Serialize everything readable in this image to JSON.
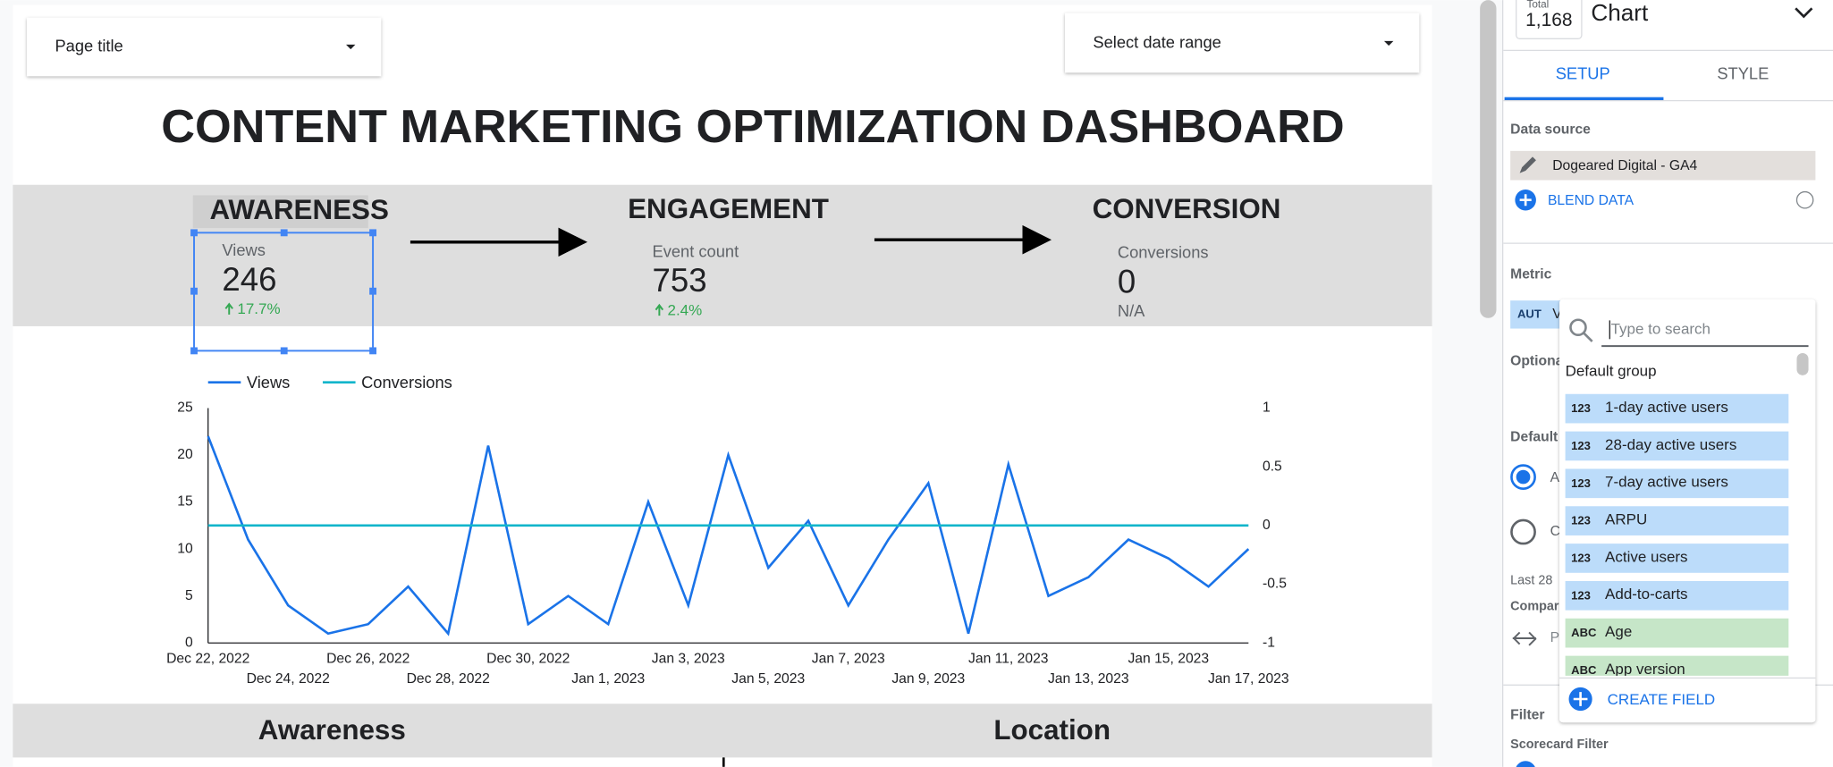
{
  "report": {
    "page_filter": "Page title",
    "date_filter": "Select date range",
    "title": "CONTENT MARKETING OPTIMIZATION DASHBOARD",
    "scorecards": [
      {
        "heading": "AWARENESS",
        "metric": "Views",
        "value": "246",
        "change": "17.7%"
      },
      {
        "heading": "ENGAGEMENT",
        "metric": "Event count",
        "value": "753",
        "change": "2.4%"
      },
      {
        "heading": "CONVERSION",
        "metric": "Conversions",
        "value": "0",
        "change": "N/A"
      }
    ],
    "sections": [
      "Awareness",
      "Location"
    ]
  },
  "panel": {
    "total_label": "Total",
    "total_value": "1,168",
    "chart_label": "Chart",
    "tabs": [
      "SETUP",
      "STYLE"
    ],
    "data_source_label": "Data source",
    "data_source": "Dogeared Digital - GA4",
    "blend": "BLEND DATA",
    "metric_label": "Metric",
    "metric_chip": "AUT",
    "metric_chip2": "V",
    "optional_label": "Optiona",
    "default_label": "Default",
    "radio_a": "A",
    "radio_c": "C",
    "last": "Last 28",
    "compare": "Compar",
    "compare_value": "P",
    "filter_label": "Filter",
    "filter_sub": "Scorecard Filter"
  },
  "field_picker": {
    "placeholder": "Type to search",
    "group": "Default group",
    "create": "CREATE FIELD",
    "fields": [
      {
        "type": "123",
        "name": "1-day active users",
        "color": "#bcdcfa"
      },
      {
        "type": "123",
        "name": "28-day active users",
        "color": "#bcdcfa"
      },
      {
        "type": "123",
        "name": "7-day active users",
        "color": "#bcdcfa"
      },
      {
        "type": "123",
        "name": "ARPU",
        "color": "#bcdcfa"
      },
      {
        "type": "123",
        "name": "Active users",
        "color": "#bcdcfa"
      },
      {
        "type": "123",
        "name": "Add-to-carts",
        "color": "#bcdcfa"
      },
      {
        "type": "ABC",
        "name": "Age",
        "color": "#c6e6c8"
      },
      {
        "type": "ABC",
        "name": "App version",
        "color": "#c6e6c8"
      }
    ]
  },
  "chart_data": {
    "type": "line",
    "categories": [
      "Dec 22, 2022",
      null,
      "Dec 24, 2022",
      null,
      "Dec 26, 2022",
      null,
      "Dec 28, 2022",
      null,
      "Dec 30, 2022",
      null,
      "Jan 1, 2023",
      null,
      "Jan 3, 2023",
      null,
      "Jan 5, 2023",
      null,
      "Jan 7, 2023",
      null,
      "Jan 9, 2023",
      null,
      "Jan 11, 2023",
      null,
      "Jan 13, 2023",
      null,
      "Jan 15, 2023",
      null,
      "Jan 17, 2023"
    ],
    "series": [
      {
        "name": "Views",
        "color": "#1a73e8",
        "values": [
          22,
          11,
          4,
          1,
          2,
          6,
          1,
          21,
          2,
          5,
          2,
          15,
          4,
          20,
          8,
          13,
          4,
          11,
          17,
          1,
          19,
          5,
          7,
          11,
          9,
          6,
          10
        ]
      },
      {
        "name": "Conversions",
        "color": "#12b5cb",
        "axis": "y2",
        "values": [
          0,
          0,
          0,
          0,
          0,
          0,
          0,
          0,
          0,
          0,
          0,
          0,
          0,
          0,
          0,
          0,
          0,
          0,
          0,
          0,
          0,
          0,
          0,
          0,
          0,
          0,
          0
        ]
      }
    ],
    "ylim": [
      0,
      25
    ],
    "yticks": [
      0,
      5,
      10,
      15,
      20,
      25
    ],
    "y2lim": [
      -1,
      1
    ],
    "y2ticks": [
      -1,
      -0.5,
      0,
      0.5,
      1
    ],
    "grid": false,
    "legend": "top"
  }
}
